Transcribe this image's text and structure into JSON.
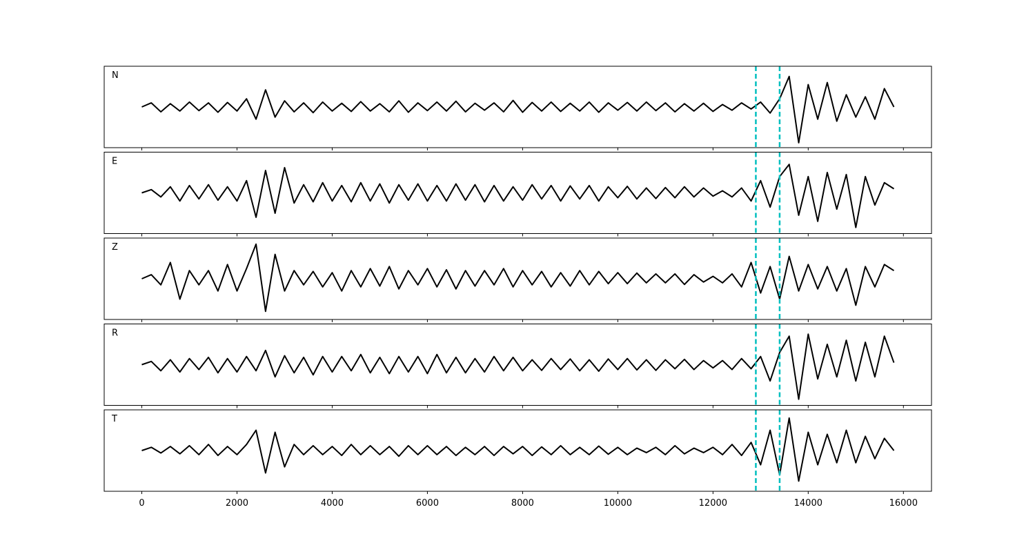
{
  "chart_data": [
    {
      "type": "line",
      "label": "N",
      "color": "#000000",
      "xlim": [
        -790,
        16590
      ],
      "ylim": [
        -1,
        1
      ],
      "vlines": [
        12900,
        13400
      ],
      "vline_color": "#00bfbf",
      "x": [
        0,
        200,
        400,
        600,
        800,
        1000,
        1200,
        1400,
        1600,
        1800,
        2000,
        2200,
        2400,
        2600,
        2800,
        3000,
        3200,
        3400,
        3600,
        3800,
        4000,
        4200,
        4400,
        4600,
        4800,
        5000,
        5200,
        5400,
        5600,
        5800,
        6000,
        6200,
        6400,
        6600,
        6800,
        7000,
        7200,
        7400,
        7600,
        7800,
        8000,
        8200,
        8400,
        8600,
        8800,
        9000,
        9200,
        9400,
        9600,
        9800,
        10000,
        10200,
        10400,
        10600,
        10800,
        11000,
        11200,
        11400,
        11600,
        11800,
        12000,
        12200,
        12400,
        12600,
        12800,
        13000,
        13200,
        13400,
        13600,
        13800,
        14000,
        14200,
        14400,
        14600,
        14800,
        15000,
        15200,
        15400,
        15600,
        15800
      ],
      "values": [
        0,
        0.1,
        -0.12,
        0.08,
        -0.1,
        0.12,
        -0.09,
        0.1,
        -0.13,
        0.11,
        -0.1,
        0.2,
        -0.3,
        0.42,
        -0.25,
        0.15,
        -0.12,
        0.1,
        -0.14,
        0.12,
        -0.1,
        0.09,
        -0.11,
        0.13,
        -0.1,
        0.08,
        -0.12,
        0.15,
        -0.13,
        0.1,
        -0.09,
        0.12,
        -0.1,
        0.14,
        -0.12,
        0.09,
        -0.08,
        0.1,
        -0.12,
        0.16,
        -0.13,
        0.11,
        -0.1,
        0.12,
        -0.11,
        0.09,
        -0.1,
        0.12,
        -0.13,
        0.1,
        -0.08,
        0.11,
        -0.1,
        0.12,
        -0.09,
        0.1,
        -0.12,
        0.08,
        -0.1,
        0.09,
        -0.11,
        0.06,
        -0.08,
        0.1,
        -0.05,
        0.12,
        -0.15,
        0.2,
        0.75,
        -0.88,
        0.55,
        -0.3,
        0.6,
        -0.35,
        0.3,
        -0.25,
        0.25,
        -0.3,
        0.45,
        0
      ]
    },
    {
      "type": "line",
      "label": "E",
      "color": "#000000",
      "xlim": [
        -790,
        16590
      ],
      "ylim": [
        -1,
        1
      ],
      "vlines": [
        12900,
        13400
      ],
      "vline_color": "#00bfbf",
      "x": [
        0,
        200,
        400,
        600,
        800,
        1000,
        1200,
        1400,
        1600,
        1800,
        2000,
        2200,
        2400,
        2600,
        2800,
        3000,
        3200,
        3400,
        3600,
        3800,
        4000,
        4200,
        4400,
        4600,
        4800,
        5000,
        5200,
        5400,
        5600,
        5800,
        6000,
        6200,
        6400,
        6600,
        6800,
        7000,
        7200,
        7400,
        7600,
        7800,
        8000,
        8200,
        8400,
        8600,
        8800,
        9000,
        9200,
        9400,
        9600,
        9800,
        10000,
        10200,
        10400,
        10600,
        10800,
        11000,
        11200,
        11400,
        11600,
        11800,
        12000,
        12200,
        12400,
        12600,
        12800,
        13000,
        13200,
        13400,
        13600,
        13800,
        14000,
        14200,
        14400,
        14600,
        14800,
        15000,
        15200,
        15400,
        15600,
        15800
      ],
      "values": [
        0,
        0.08,
        -0.1,
        0.15,
        -0.2,
        0.18,
        -0.15,
        0.2,
        -0.18,
        0.15,
        -0.2,
        0.3,
        -0.6,
        0.55,
        -0.5,
        0.62,
        -0.25,
        0.2,
        -0.22,
        0.25,
        -0.2,
        0.18,
        -0.22,
        0.25,
        -0.2,
        0.22,
        -0.25,
        0.2,
        -0.18,
        0.22,
        -0.2,
        0.18,
        -0.2,
        0.22,
        -0.18,
        0.2,
        -0.22,
        0.18,
        -0.2,
        0.15,
        -0.18,
        0.2,
        -0.15,
        0.18,
        -0.2,
        0.17,
        -0.15,
        0.18,
        -0.2,
        0.15,
        -0.12,
        0.16,
        -0.15,
        0.12,
        -0.14,
        0.13,
        -0.12,
        0.15,
        -0.1,
        0.12,
        -0.08,
        0.05,
        -0.1,
        0.12,
        -0.2,
        0.3,
        -0.35,
        0.4,
        0.7,
        -0.55,
        0.4,
        -0.7,
        0.5,
        -0.4,
        0.45,
        -0.85,
        0.4,
        -0.3,
        0.25,
        0.1
      ]
    },
    {
      "type": "line",
      "label": "Z",
      "color": "#000000",
      "xlim": [
        -790,
        16590
      ],
      "ylim": [
        -1,
        1
      ],
      "vlines": [
        12900,
        13400
      ],
      "vline_color": "#00bfbf",
      "x": [
        0,
        200,
        400,
        600,
        800,
        1000,
        1200,
        1400,
        1600,
        1800,
        2000,
        2200,
        2400,
        2600,
        2800,
        3000,
        3200,
        3400,
        3600,
        3800,
        4000,
        4200,
        4400,
        4600,
        4800,
        5000,
        5200,
        5400,
        5600,
        5800,
        6000,
        6200,
        6400,
        6600,
        6800,
        7000,
        7200,
        7400,
        7600,
        7800,
        8000,
        8200,
        8400,
        8600,
        8800,
        9000,
        9200,
        9400,
        9600,
        9800,
        10000,
        10200,
        10400,
        10600,
        10800,
        11000,
        11200,
        11400,
        11600,
        11800,
        12000,
        12200,
        12400,
        12600,
        12800,
        13000,
        13200,
        13400,
        13600,
        13800,
        14000,
        14200,
        14400,
        14600,
        14800,
        15000,
        15200,
        15400,
        15600,
        15800
      ],
      "values": [
        0,
        0.1,
        -0.15,
        0.4,
        -0.5,
        0.2,
        -0.15,
        0.2,
        -0.3,
        0.35,
        -0.3,
        0.25,
        0.85,
        -0.8,
        0.6,
        -0.3,
        0.2,
        -0.15,
        0.18,
        -0.2,
        0.15,
        -0.3,
        0.2,
        -0.2,
        0.25,
        -0.18,
        0.3,
        -0.25,
        0.2,
        -0.15,
        0.25,
        -0.2,
        0.22,
        -0.25,
        0.2,
        -0.18,
        0.2,
        -0.15,
        0.25,
        -0.2,
        0.2,
        -0.15,
        0.18,
        -0.2,
        0.15,
        -0.18,
        0.2,
        -0.15,
        0.18,
        -0.12,
        0.15,
        -0.12,
        0.14,
        -0.1,
        0.12,
        -0.1,
        0.12,
        -0.14,
        0.1,
        -0.08,
        0.06,
        -0.1,
        0.12,
        -0.2,
        0.4,
        -0.35,
        0.3,
        -0.5,
        0.55,
        -0.3,
        0.35,
        -0.25,
        0.3,
        -0.3,
        0.25,
        -0.65,
        0.3,
        -0.2,
        0.35,
        0.2
      ]
    },
    {
      "type": "line",
      "label": "R",
      "color": "#000000",
      "xlim": [
        -790,
        16590
      ],
      "ylim": [
        -1,
        1
      ],
      "vlines": [
        12900,
        13400
      ],
      "vline_color": "#00bfbf",
      "x": [
        0,
        200,
        400,
        600,
        800,
        1000,
        1200,
        1400,
        1600,
        1800,
        2000,
        2200,
        2400,
        2600,
        2800,
        3000,
        3200,
        3400,
        3600,
        3800,
        4000,
        4200,
        4400,
        4600,
        4800,
        5000,
        5200,
        5400,
        5600,
        5800,
        6000,
        6200,
        6400,
        6600,
        6800,
        7000,
        7200,
        7400,
        7600,
        7800,
        8000,
        8200,
        8400,
        8600,
        8800,
        9000,
        9200,
        9400,
        9600,
        9800,
        10000,
        10200,
        10400,
        10600,
        10800,
        11000,
        11200,
        11400,
        11600,
        11800,
        12000,
        12200,
        12400,
        12600,
        12800,
        13000,
        13200,
        13400,
        13600,
        13800,
        14000,
        14200,
        14400,
        14600,
        14800,
        15000,
        15200,
        15400,
        15600,
        15800
      ],
      "values": [
        0,
        0.08,
        -0.15,
        0.12,
        -0.18,
        0.15,
        -0.12,
        0.18,
        -0.2,
        0.15,
        -0.18,
        0.2,
        -0.15,
        0.35,
        -0.3,
        0.22,
        -0.2,
        0.18,
        -0.25,
        0.2,
        -0.18,
        0.2,
        -0.15,
        0.25,
        -0.2,
        0.18,
        -0.22,
        0.2,
        -0.18,
        0.2,
        -0.22,
        0.25,
        -0.2,
        0.18,
        -0.2,
        0.15,
        -0.18,
        0.2,
        -0.15,
        0.18,
        -0.15,
        0.12,
        -0.14,
        0.15,
        -0.12,
        0.14,
        -0.15,
        0.12,
        -0.16,
        0.14,
        -0.12,
        0.15,
        -0.13,
        0.12,
        -0.14,
        0.12,
        -0.1,
        0.13,
        -0.12,
        0.1,
        -0.08,
        0.1,
        -0.12,
        0.15,
        -0.1,
        0.2,
        -0.4,
        0.3,
        0.7,
        -0.85,
        0.75,
        -0.35,
        0.5,
        -0.3,
        0.6,
        -0.4,
        0.55,
        -0.3,
        0.7,
        0.05
      ]
    },
    {
      "type": "line",
      "label": "T",
      "color": "#000000",
      "xlim": [
        -790,
        16590
      ],
      "ylim": [
        -1,
        1
      ],
      "vlines": [
        12900,
        13400
      ],
      "vline_color": "#00bfbf",
      "xticks": [
        0,
        2000,
        4000,
        6000,
        8000,
        10000,
        12000,
        14000,
        16000
      ],
      "x": [
        0,
        200,
        400,
        600,
        800,
        1000,
        1200,
        1400,
        1600,
        1800,
        2000,
        2200,
        2400,
        2600,
        2800,
        3000,
        3200,
        3400,
        3600,
        3800,
        4000,
        4200,
        4400,
        4600,
        4800,
        5000,
        5200,
        5400,
        5600,
        5800,
        6000,
        6200,
        6400,
        6600,
        6800,
        7000,
        7200,
        7400,
        7600,
        7800,
        8000,
        8200,
        8400,
        8600,
        8800,
        9000,
        9200,
        9400,
        9600,
        9800,
        10000,
        10200,
        10400,
        10600,
        10800,
        11000,
        11200,
        11400,
        11600,
        11800,
        12000,
        12200,
        12400,
        12600,
        12800,
        13000,
        13200,
        13400,
        13600,
        13800,
        14000,
        14200,
        14400,
        14600,
        14800,
        15000,
        15200,
        15400,
        15600,
        15800
      ],
      "values": [
        0,
        0.08,
        -0.06,
        0.1,
        -0.08,
        0.12,
        -0.1,
        0.15,
        -0.12,
        0.1,
        -0.1,
        0.15,
        0.5,
        -0.55,
        0.45,
        -0.4,
        0.15,
        -0.1,
        0.12,
        -0.1,
        0.1,
        -0.12,
        0.15,
        -0.1,
        0.12,
        -0.1,
        0.1,
        -0.14,
        0.12,
        -0.1,
        0.12,
        -0.1,
        0.1,
        -0.12,
        0.08,
        -0.1,
        0.1,
        -0.12,
        0.1,
        -0.08,
        0.1,
        -0.12,
        0.09,
        -0.1,
        0.12,
        -0.1,
        0.08,
        -0.1,
        0.11,
        -0.09,
        0.08,
        -0.1,
        0.06,
        -0.05,
        0.08,
        -0.1,
        0.12,
        -0.08,
        0.06,
        -0.05,
        0.08,
        -0.1,
        0.15,
        -0.12,
        0.2,
        -0.35,
        0.5,
        -0.6,
        0.8,
        -0.75,
        0.45,
        -0.35,
        0.4,
        -0.3,
        0.5,
        -0.3,
        0.35,
        -0.2,
        0.3,
        0
      ]
    }
  ]
}
